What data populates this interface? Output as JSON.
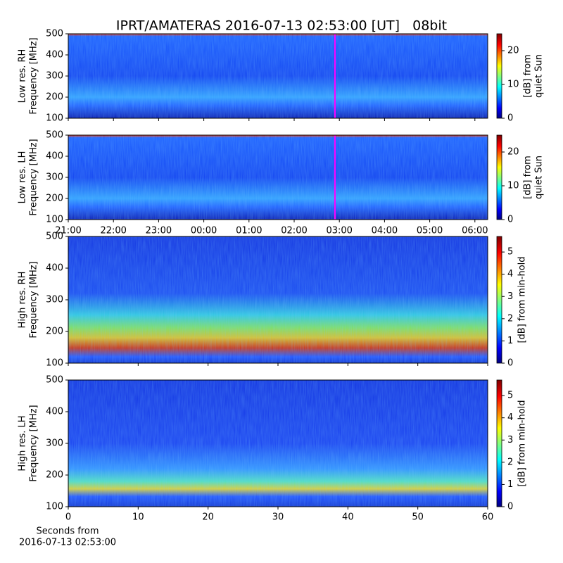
{
  "chart_data": [
    {
      "type": "spectrogram",
      "ylabel": [
        "Low res. RH",
        "Frequency [MHz]"
      ],
      "ylim": [
        100,
        500
      ],
      "yticks": [
        100,
        200,
        300,
        400,
        500
      ],
      "colorbar_label": [
        "[dB] from",
        "quiet Sun"
      ],
      "clim": [
        0,
        25
      ],
      "cticks": [
        0,
        10,
        20
      ]
    },
    {
      "type": "spectrogram",
      "ylabel": [
        "Low res. LH",
        "Frequency [MHz]"
      ],
      "ylim": [
        100,
        500
      ],
      "yticks": [
        100,
        200,
        300,
        400,
        500
      ],
      "colorbar_label": [
        "[dB] from",
        "quiet Sun"
      ],
      "clim": [
        0,
        25
      ],
      "cticks": [
        0,
        10,
        20
      ],
      "xticks": [
        "21:00",
        "22:00",
        "23:00",
        "00:00",
        "01:00",
        "02:00",
        "03:00",
        "04:00",
        "05:00",
        "06:00"
      ]
    },
    {
      "type": "spectrogram",
      "ylabel": [
        "High res. RH",
        "Frequency [MHz]"
      ],
      "ylim": [
        100,
        500
      ],
      "yticks": [
        100,
        200,
        300,
        400,
        500
      ],
      "colorbar_label": [
        "[dB] from min-hold"
      ],
      "clim": [
        0,
        5.7
      ],
      "cticks": [
        0,
        1,
        2,
        3,
        4,
        5
      ]
    },
    {
      "type": "spectrogram",
      "ylabel": [
        "High res. LH",
        "Frequency [MHz]"
      ],
      "ylim": [
        100,
        500
      ],
      "yticks": [
        100,
        200,
        300,
        400,
        500
      ],
      "colorbar_label": [
        "[dB] from min-hold"
      ],
      "clim": [
        0,
        5.7
      ],
      "cticks": [
        0,
        1,
        2,
        3,
        4,
        5
      ],
      "xlim": [
        0,
        60
      ],
      "xticks": [
        0,
        10,
        20,
        30,
        40,
        50,
        60
      ],
      "xlabel": [
        "Seconds from",
        "2016-07-13 02:53:00"
      ]
    }
  ],
  "title": "IPRT/AMATERAS 2016-07-13 02:53:00 [UT]   08bit"
}
